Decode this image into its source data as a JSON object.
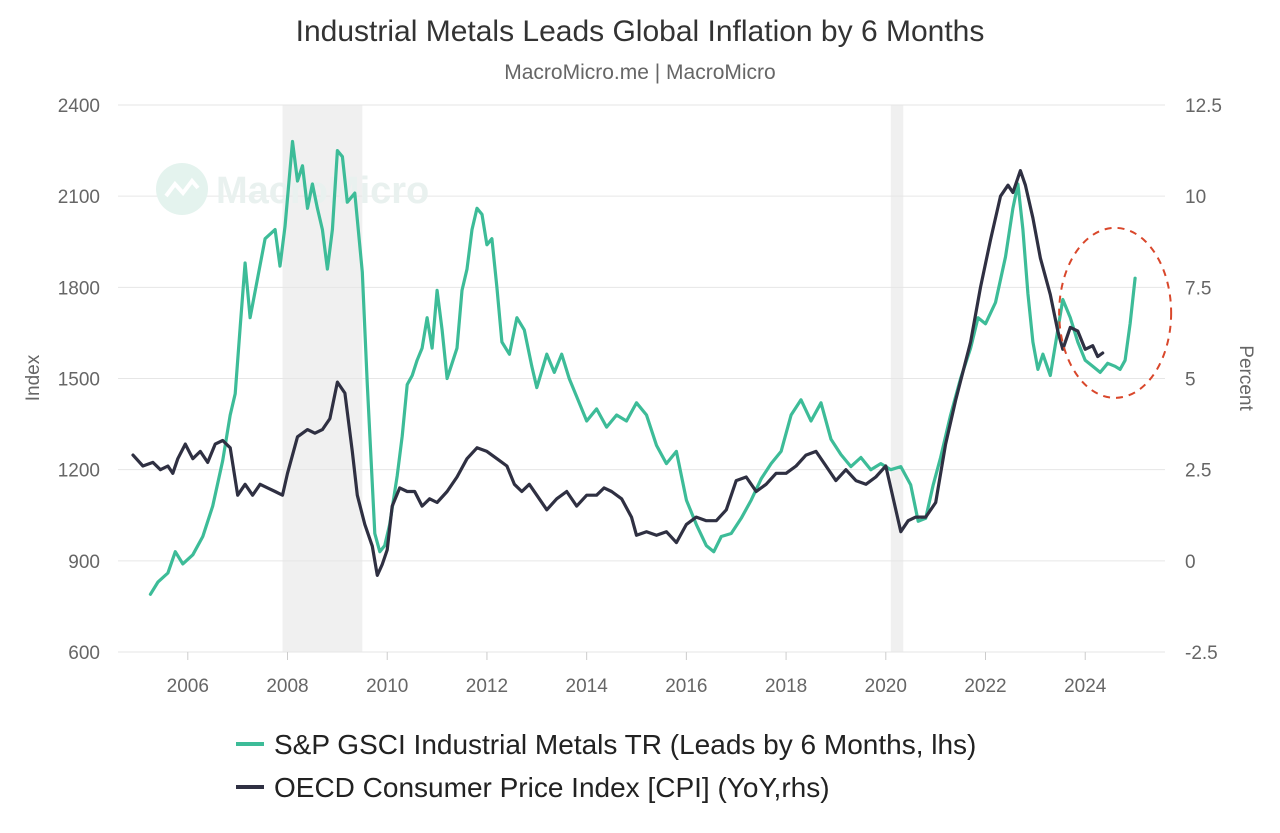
{
  "colors": {
    "metals": "#3dbc98",
    "cpi": "#2f3042",
    "recession": "#f0f0f0",
    "grid": "#e6e6e6",
    "highlight": "#d9472b"
  },
  "chart_data": {
    "type": "line",
    "title": "Industrial Metals Leads Global Inflation by 6 Months",
    "subtitle": "MacroMicro.me | MacroMicro",
    "watermark": "MacroMicro",
    "xlabel": "",
    "ylabel_left": "Index",
    "ylabel_right": "Percent",
    "xlim": [
      2004.6,
      2025.6
    ],
    "ylim_left": [
      600,
      2400
    ],
    "ylim_right": [
      -2.5,
      12.5
    ],
    "x_ticks": [
      "2006",
      "2008",
      "2010",
      "2012",
      "2014",
      "2016",
      "2018",
      "2020",
      "2022",
      "2024"
    ],
    "left_ticks": [
      "600",
      "900",
      "1200",
      "1500",
      "1800",
      "2100",
      "2400"
    ],
    "right_ticks": [
      "-2.5",
      "0",
      "2.5",
      "5",
      "7.5",
      "10",
      "12.5"
    ],
    "recessions": [
      {
        "start": 2007.9,
        "end": 2009.5
      },
      {
        "start": 2020.1,
        "end": 2020.35
      }
    ],
    "highlight_region": {
      "x_center": 2024.6,
      "y_center": 6.8,
      "note": "dashed circle around recent divergence"
    },
    "series": [
      {
        "name": "S&P GSCI Industrial Metals TR (Leads by 6 Months, lhs)",
        "axis": "left",
        "points": [
          [
            2005.25,
            790
          ],
          [
            2005.4,
            830
          ],
          [
            2005.6,
            860
          ],
          [
            2005.75,
            930
          ],
          [
            2005.9,
            890
          ],
          [
            2006.1,
            920
          ],
          [
            2006.3,
            980
          ],
          [
            2006.5,
            1080
          ],
          [
            2006.7,
            1230
          ],
          [
            2006.85,
            1380
          ],
          [
            2006.95,
            1450
          ],
          [
            2007.05,
            1670
          ],
          [
            2007.15,
            1880
          ],
          [
            2007.25,
            1700
          ],
          [
            2007.4,
            1830
          ],
          [
            2007.55,
            1960
          ],
          [
            2007.75,
            1990
          ],
          [
            2007.85,
            1870
          ],
          [
            2007.95,
            2000
          ],
          [
            2008.1,
            2280
          ],
          [
            2008.2,
            2150
          ],
          [
            2008.3,
            2200
          ],
          [
            2008.4,
            2060
          ],
          [
            2008.5,
            2140
          ],
          [
            2008.6,
            2060
          ],
          [
            2008.7,
            1990
          ],
          [
            2008.8,
            1860
          ],
          [
            2008.9,
            1990
          ],
          [
            2009.0,
            2250
          ],
          [
            2009.1,
            2230
          ],
          [
            2009.2,
            2080
          ],
          [
            2009.35,
            2110
          ],
          [
            2009.5,
            1850
          ],
          [
            2009.6,
            1480
          ],
          [
            2009.75,
            990
          ],
          [
            2009.85,
            930
          ],
          [
            2009.95,
            950
          ],
          [
            2010.05,
            1020
          ],
          [
            2010.2,
            1180
          ],
          [
            2010.3,
            1310
          ],
          [
            2010.4,
            1480
          ],
          [
            2010.5,
            1510
          ],
          [
            2010.6,
            1560
          ],
          [
            2010.7,
            1600
          ],
          [
            2010.8,
            1700
          ],
          [
            2010.9,
            1600
          ],
          [
            2011.0,
            1790
          ],
          [
            2011.1,
            1660
          ],
          [
            2011.2,
            1500
          ],
          [
            2011.4,
            1600
          ],
          [
            2011.5,
            1790
          ],
          [
            2011.6,
            1860
          ],
          [
            2011.7,
            1990
          ],
          [
            2011.8,
            2060
          ],
          [
            2011.9,
            2040
          ],
          [
            2012.0,
            1940
          ],
          [
            2012.1,
            1960
          ],
          [
            2012.2,
            1800
          ],
          [
            2012.3,
            1620
          ],
          [
            2012.45,
            1580
          ],
          [
            2012.6,
            1700
          ],
          [
            2012.75,
            1660
          ],
          [
            2012.9,
            1540
          ],
          [
            2013.0,
            1470
          ],
          [
            2013.2,
            1580
          ],
          [
            2013.35,
            1520
          ],
          [
            2013.5,
            1580
          ],
          [
            2013.65,
            1500
          ],
          [
            2013.8,
            1440
          ],
          [
            2014.0,
            1360
          ],
          [
            2014.2,
            1400
          ],
          [
            2014.4,
            1340
          ],
          [
            2014.6,
            1380
          ],
          [
            2014.8,
            1360
          ],
          [
            2015.0,
            1420
          ],
          [
            2015.2,
            1380
          ],
          [
            2015.4,
            1280
          ],
          [
            2015.6,
            1220
          ],
          [
            2015.8,
            1260
          ],
          [
            2016.0,
            1100
          ],
          [
            2016.2,
            1020
          ],
          [
            2016.4,
            950
          ],
          [
            2016.55,
            930
          ],
          [
            2016.7,
            980
          ],
          [
            2016.9,
            990
          ],
          [
            2017.1,
            1040
          ],
          [
            2017.3,
            1100
          ],
          [
            2017.5,
            1170
          ],
          [
            2017.7,
            1220
          ],
          [
            2017.9,
            1260
          ],
          [
            2018.1,
            1380
          ],
          [
            2018.3,
            1430
          ],
          [
            2018.5,
            1360
          ],
          [
            2018.7,
            1420
          ],
          [
            2018.9,
            1300
          ],
          [
            2019.1,
            1250
          ],
          [
            2019.3,
            1210
          ],
          [
            2019.5,
            1240
          ],
          [
            2019.7,
            1200
          ],
          [
            2019.9,
            1220
          ],
          [
            2020.1,
            1200
          ],
          [
            2020.3,
            1210
          ],
          [
            2020.5,
            1150
          ],
          [
            2020.65,
            1030
          ],
          [
            2020.8,
            1040
          ],
          [
            2020.95,
            1150
          ],
          [
            2021.1,
            1240
          ],
          [
            2021.3,
            1380
          ],
          [
            2021.5,
            1500
          ],
          [
            2021.7,
            1600
          ],
          [
            2021.85,
            1700
          ],
          [
            2022.0,
            1680
          ],
          [
            2022.2,
            1750
          ],
          [
            2022.4,
            1900
          ],
          [
            2022.55,
            2060
          ],
          [
            2022.65,
            2140
          ],
          [
            2022.75,
            1990
          ],
          [
            2022.85,
            1780
          ],
          [
            2022.95,
            1620
          ],
          [
            2023.05,
            1530
          ],
          [
            2023.15,
            1580
          ],
          [
            2023.3,
            1510
          ],
          [
            2023.45,
            1660
          ],
          [
            2023.55,
            1760
          ],
          [
            2023.7,
            1700
          ],
          [
            2023.85,
            1620
          ],
          [
            2024.0,
            1560
          ],
          [
            2024.15,
            1540
          ],
          [
            2024.3,
            1520
          ],
          [
            2024.45,
            1550
          ],
          [
            2024.6,
            1540
          ],
          [
            2024.7,
            1530
          ],
          [
            2024.8,
            1560
          ],
          [
            2024.9,
            1680
          ],
          [
            2025.0,
            1830
          ]
        ]
      },
      {
        "name": "OECD Consumer Price Index [CPI] (YoY,rhs)",
        "axis": "right",
        "points": [
          [
            2004.9,
            2.9
          ],
          [
            2005.1,
            2.6
          ],
          [
            2005.3,
            2.7
          ],
          [
            2005.45,
            2.5
          ],
          [
            2005.6,
            2.6
          ],
          [
            2005.7,
            2.4
          ],
          [
            2005.8,
            2.8
          ],
          [
            2005.95,
            3.2
          ],
          [
            2006.1,
            2.8
          ],
          [
            2006.25,
            3.0
          ],
          [
            2006.4,
            2.7
          ],
          [
            2006.55,
            3.2
          ],
          [
            2006.7,
            3.3
          ],
          [
            2006.85,
            3.1
          ],
          [
            2007.0,
            1.8
          ],
          [
            2007.15,
            2.1
          ],
          [
            2007.3,
            1.8
          ],
          [
            2007.45,
            2.1
          ],
          [
            2007.6,
            2.0
          ],
          [
            2007.75,
            1.9
          ],
          [
            2007.9,
            1.8
          ],
          [
            2008.0,
            2.4
          ],
          [
            2008.2,
            3.4
          ],
          [
            2008.4,
            3.6
          ],
          [
            2008.55,
            3.5
          ],
          [
            2008.7,
            3.6
          ],
          [
            2008.85,
            3.9
          ],
          [
            2009.0,
            4.9
          ],
          [
            2009.15,
            4.6
          ],
          [
            2009.3,
            3.0
          ],
          [
            2009.4,
            1.8
          ],
          [
            2009.55,
            1.0
          ],
          [
            2009.7,
            0.4
          ],
          [
            2009.8,
            -0.4
          ],
          [
            2009.9,
            -0.1
          ],
          [
            2010.0,
            0.3
          ],
          [
            2010.1,
            1.5
          ],
          [
            2010.25,
            2.0
          ],
          [
            2010.4,
            1.9
          ],
          [
            2010.55,
            1.9
          ],
          [
            2010.7,
            1.5
          ],
          [
            2010.85,
            1.7
          ],
          [
            2011.0,
            1.6
          ],
          [
            2011.2,
            1.9
          ],
          [
            2011.4,
            2.3
          ],
          [
            2011.6,
            2.8
          ],
          [
            2011.8,
            3.1
          ],
          [
            2012.0,
            3.0
          ],
          [
            2012.2,
            2.8
          ],
          [
            2012.4,
            2.6
          ],
          [
            2012.55,
            2.1
          ],
          [
            2012.7,
            1.9
          ],
          [
            2012.85,
            2.1
          ],
          [
            2013.0,
            1.8
          ],
          [
            2013.2,
            1.4
          ],
          [
            2013.4,
            1.7
          ],
          [
            2013.6,
            1.9
          ],
          [
            2013.8,
            1.5
          ],
          [
            2014.0,
            1.8
          ],
          [
            2014.2,
            1.8
          ],
          [
            2014.35,
            2.0
          ],
          [
            2014.5,
            1.9
          ],
          [
            2014.7,
            1.7
          ],
          [
            2014.9,
            1.2
          ],
          [
            2015.0,
            0.7
          ],
          [
            2015.2,
            0.8
          ],
          [
            2015.4,
            0.7
          ],
          [
            2015.6,
            0.8
          ],
          [
            2015.8,
            0.5
          ],
          [
            2016.0,
            1.0
          ],
          [
            2016.2,
            1.2
          ],
          [
            2016.4,
            1.1
          ],
          [
            2016.6,
            1.1
          ],
          [
            2016.8,
            1.4
          ],
          [
            2017.0,
            2.2
          ],
          [
            2017.2,
            2.3
          ],
          [
            2017.4,
            1.9
          ],
          [
            2017.6,
            2.1
          ],
          [
            2017.8,
            2.4
          ],
          [
            2018.0,
            2.4
          ],
          [
            2018.2,
            2.6
          ],
          [
            2018.4,
            2.9
          ],
          [
            2018.6,
            3.0
          ],
          [
            2018.8,
            2.6
          ],
          [
            2019.0,
            2.2
          ],
          [
            2019.2,
            2.5
          ],
          [
            2019.4,
            2.2
          ],
          [
            2019.6,
            2.1
          ],
          [
            2019.8,
            2.3
          ],
          [
            2020.0,
            2.6
          ],
          [
            2020.15,
            1.7
          ],
          [
            2020.3,
            0.8
          ],
          [
            2020.45,
            1.1
          ],
          [
            2020.6,
            1.2
          ],
          [
            2020.8,
            1.2
          ],
          [
            2021.0,
            1.6
          ],
          [
            2021.2,
            3.2
          ],
          [
            2021.4,
            4.4
          ],
          [
            2021.55,
            5.2
          ],
          [
            2021.7,
            6.0
          ],
          [
            2021.9,
            7.5
          ],
          [
            2022.1,
            8.8
          ],
          [
            2022.3,
            10.0
          ],
          [
            2022.45,
            10.3
          ],
          [
            2022.55,
            10.1
          ],
          [
            2022.7,
            10.7
          ],
          [
            2022.8,
            10.3
          ],
          [
            2022.95,
            9.4
          ],
          [
            2023.1,
            8.3
          ],
          [
            2023.3,
            7.3
          ],
          [
            2023.45,
            6.3
          ],
          [
            2023.55,
            5.8
          ],
          [
            2023.7,
            6.4
          ],
          [
            2023.85,
            6.3
          ],
          [
            2024.0,
            5.8
          ],
          [
            2024.15,
            5.9
          ],
          [
            2024.25,
            5.6
          ],
          [
            2024.35,
            5.7
          ]
        ]
      }
    ]
  }
}
